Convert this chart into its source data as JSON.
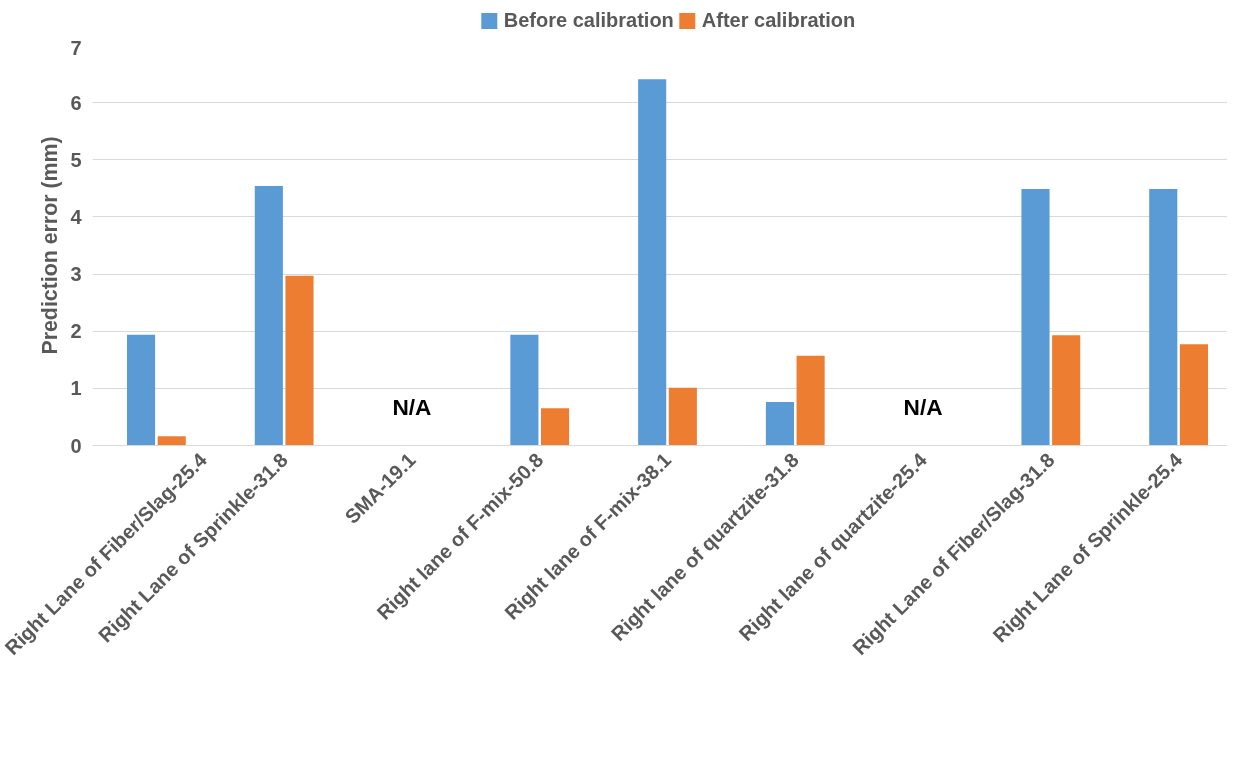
{
  "chart_data": {
    "type": "bar",
    "ylabel": "Prediction error (mm)",
    "categories": [
      "Right Lane of Fiber/Slag-25.4",
      "Right Lane of Sprinkle-31.8",
      "SMA-19.1",
      "Right lane of F-mix-50.8",
      "Right lane of F-mix-38.1",
      "Right lane of quartzite-31.8",
      "Right lane of quartzite-25.4",
      "Right Lane of Fiber/Slag-31.8",
      "Right Lane of Sprinkle-25.4"
    ],
    "series": [
      {
        "name": "Before calibration",
        "color": "#5b9bd5",
        "values": [
          1.94,
          4.54,
          null,
          1.94,
          6.41,
          0.76,
          null,
          4.49,
          4.49
        ]
      },
      {
        "name": "After calibration",
        "color": "#ed7d31",
        "values": [
          0.16,
          2.97,
          null,
          0.65,
          1.01,
          1.57,
          null,
          1.93,
          1.77
        ]
      }
    ],
    "annotations": [
      "N/A",
      "N/A"
    ],
    "ylim": [
      0,
      7
    ],
    "yticks": [
      0,
      1,
      2,
      3,
      4,
      5,
      6,
      7
    ],
    "grid": "y",
    "legend": "top"
  }
}
